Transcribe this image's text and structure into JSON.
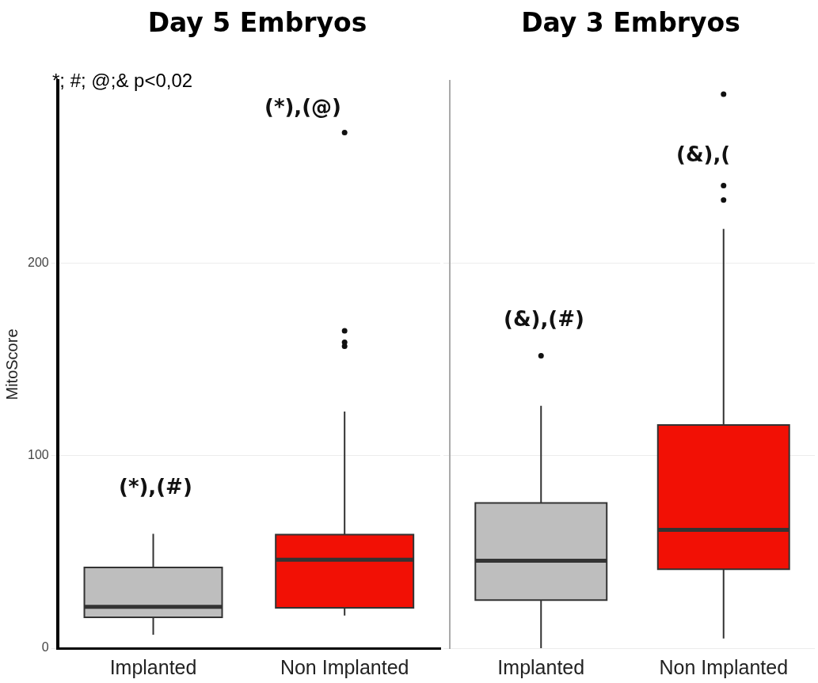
{
  "chart_data": [
    {
      "type": "box",
      "title": "Day 5 Embryos",
      "ylabel": "MitoScore",
      "categories": [
        "Implanted",
        "Non Implanted"
      ],
      "colors": [
        "#bebebe",
        "#f21005"
      ],
      "boxes": [
        {
          "low": 7,
          "q1": 16,
          "median": 21.5,
          "q3": 42,
          "high": 59.5
        },
        {
          "low": 17,
          "q1": 21,
          "median": 46,
          "q3": 59,
          "high": 123,
          "outliers": [
            157,
            159,
            165,
            268
          ]
        }
      ],
      "ylim": [
        0,
        295
      ],
      "yticks": [
        0,
        100,
        200
      ],
      "grid": "y",
      "annotations": [
        "*; #; @;& p<0,02",
        "(*),(#)",
        "(*),(@)"
      ]
    },
    {
      "type": "box",
      "title": "Day 3 Embryos",
      "categories": [
        "Implanted",
        "Non Implanted"
      ],
      "colors": [
        "#bebebe",
        "#f21005"
      ],
      "boxes": [
        {
          "low": 0,
          "q1": 25,
          "median": 45.5,
          "q3": 75.5,
          "high": 126,
          "outliers": [
            152
          ]
        },
        {
          "low": 5,
          "q1": 41,
          "median": 61.5,
          "q3": 116,
          "high": 218,
          "outliers": [
            233,
            240.5,
            288
          ]
        }
      ],
      "ylim": [
        0,
        295
      ],
      "yticks": [
        0,
        100,
        200
      ],
      "grid": "y",
      "tick_labels": "x",
      "annotations": [
        "(&),(#)",
        "(&),("
      ]
    }
  ]
}
